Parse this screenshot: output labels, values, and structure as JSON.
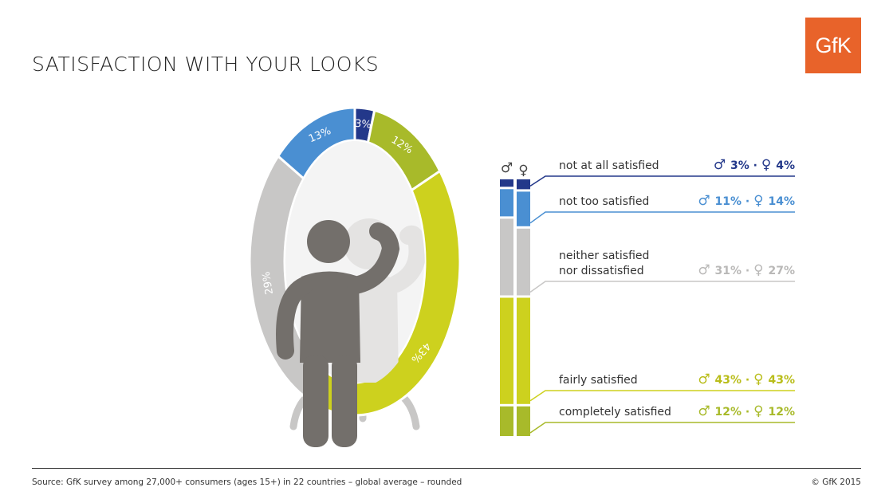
{
  "title": "SATISFACTION WITH YOUR LOOKS",
  "logo_text": "GfK",
  "source": "Source: GfK survey among 27,000+ consumers (ages 15+) in 22 countries – global average – rounded",
  "copyright": "© GfK 2015",
  "colors": {
    "not_at_all": "#23388a",
    "not_too": "#4a8fd2",
    "neither": "#c8c7c6",
    "fairly": "#cdd11e",
    "completely": "#a8ba2a",
    "person": "#736f6b",
    "logo": "#e8632a"
  },
  "chart_data": {
    "type": "pie",
    "title": "SATISFACTION WITH YOUR LOOKS",
    "ring": {
      "slices": [
        {
          "label": "3%",
          "value": 3,
          "color_key": "not_at_all"
        },
        {
          "label": "12%",
          "value": 12,
          "color_key": "completely"
        },
        {
          "label": "43%",
          "value": 43,
          "color_key": "fairly"
        },
        {
          "label": "29%",
          "value": 29,
          "color_key": "neither"
        },
        {
          "label": "13%",
          "value": 13,
          "color_key": "not_too"
        }
      ]
    },
    "gender_symbols": {
      "male": "♂",
      "female": "♀"
    },
    "categories": [
      {
        "label_lines": [
          "not at all satisfied"
        ],
        "male": "3%",
        "female": "4%",
        "male_value": 3,
        "female_value": 4,
        "color_key": "not_at_all"
      },
      {
        "label_lines": [
          "not too satisfied"
        ],
        "male": "11%",
        "female": "14%",
        "male_value": 11,
        "female_value": 14,
        "color_key": "not_too"
      },
      {
        "label_lines": [
          "neither satisfied",
          "nor dissatisfied"
        ],
        "male": "31%",
        "female": "27%",
        "male_value": 31,
        "female_value": 27,
        "color_key": "neither"
      },
      {
        "label_lines": [
          "fairly satisfied"
        ],
        "male": "43%",
        "female": "43%",
        "male_value": 43,
        "female_value": 43,
        "color_key": "fairly"
      },
      {
        "label_lines": [
          "completely satisfied"
        ],
        "male": "12%",
        "female": "12%",
        "male_value": 12,
        "female_value": 12,
        "color_key": "completely"
      }
    ]
  }
}
